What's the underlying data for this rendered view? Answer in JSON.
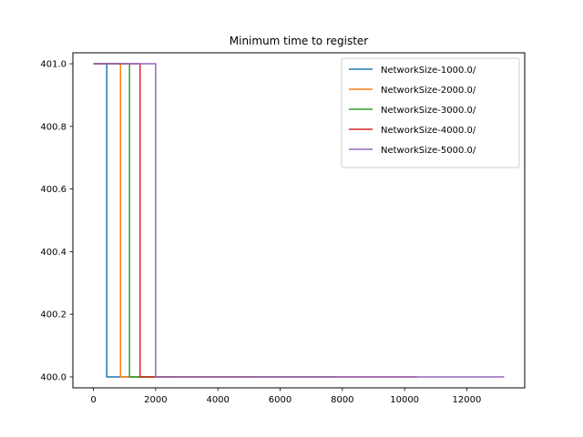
{
  "chart_data": {
    "type": "line",
    "title": "Minimum time to register",
    "xlabel": "",
    "ylabel": "",
    "xlim": [
      -660,
      13860
    ],
    "ylim": [
      399.965,
      401.035
    ],
    "x_ticks": [
      0,
      2000,
      4000,
      6000,
      8000,
      10000,
      12000
    ],
    "x_tick_labels": [
      "0",
      "2000",
      "4000",
      "6000",
      "8000",
      "10000",
      "12000"
    ],
    "y_ticks": [
      400.0,
      400.2,
      400.4,
      400.6,
      400.8,
      401.0
    ],
    "y_tick_labels": [
      "400.0",
      "400.2",
      "400.4",
      "400.6",
      "400.8",
      "401.0"
    ],
    "grid": false,
    "legend_position": "top-right",
    "series": [
      {
        "name": "NetworkSize-1000.0/",
        "color": "#1f77b4",
        "x": [
          0,
          430,
          430,
          2600
        ],
        "y": [
          401.0,
          401.0,
          400.0,
          400.0
        ]
      },
      {
        "name": "NetworkSize-2000.0/",
        "color": "#ff7f0e",
        "x": [
          0,
          870,
          870,
          5200
        ],
        "y": [
          401.0,
          401.0,
          400.0,
          400.0
        ]
      },
      {
        "name": "NetworkSize-3000.0/",
        "color": "#2ca02c",
        "x": [
          0,
          1160,
          1160,
          7800
        ],
        "y": [
          401.0,
          401.0,
          400.0,
          400.0
        ]
      },
      {
        "name": "NetworkSize-4000.0/",
        "color": "#d62728",
        "x": [
          0,
          1500,
          1500,
          10400
        ],
        "y": [
          401.0,
          401.0,
          400.0,
          400.0
        ]
      },
      {
        "name": "NetworkSize-5000.0/",
        "color": "#9467bd",
        "x": [
          0,
          2000,
          2000,
          13200
        ],
        "y": [
          401.0,
          401.0,
          400.0,
          400.0
        ]
      }
    ]
  }
}
